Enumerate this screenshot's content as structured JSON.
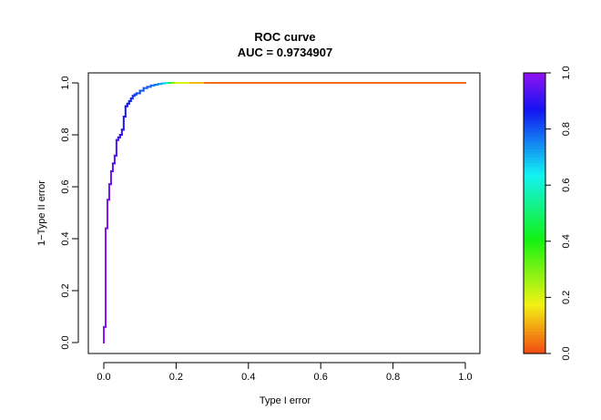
{
  "chart_data": {
    "type": "line",
    "title": "ROC curve",
    "subtitle": "AUC = 0.9734907",
    "xlabel": "Type I error",
    "ylabel": "1−Type II error",
    "xlim": [
      0,
      1
    ],
    "ylim": [
      0,
      1
    ],
    "x_ticks": [
      "0.0",
      "0.2",
      "0.4",
      "0.6",
      "0.8",
      "1.0"
    ],
    "y_ticks": [
      "0.0",
      "0.2",
      "0.4",
      "0.6",
      "0.8",
      "1.0"
    ],
    "grid": false,
    "curve_color_scale": "threshold (rainbow: red at 0, purple at 1)",
    "series": [
      {
        "x": [
          0.0,
          0.0,
          0.005,
          0.005,
          0.01,
          0.01,
          0.015,
          0.015,
          0.02,
          0.02,
          0.025,
          0.025,
          0.03,
          0.03,
          0.035,
          0.035,
          0.04,
          0.04,
          0.045,
          0.045,
          0.05,
          0.05,
          0.055,
          0.055,
          0.06,
          0.06,
          0.065,
          0.065,
          0.07,
          0.07,
          0.075,
          0.075,
          0.08,
          0.08,
          0.085,
          0.085,
          0.09,
          0.09,
          0.1,
          0.1,
          0.11,
          0.11,
          0.12,
          0.12,
          0.13,
          0.13,
          0.14,
          0.14,
          0.15,
          0.15,
          0.16,
          0.16,
          0.17,
          0.17,
          0.18,
          0.19,
          0.2,
          0.24,
          0.28,
          1.0
        ],
        "y": [
          0.0,
          0.06,
          0.06,
          0.44,
          0.44,
          0.55,
          0.55,
          0.61,
          0.61,
          0.66,
          0.66,
          0.69,
          0.69,
          0.72,
          0.72,
          0.78,
          0.78,
          0.79,
          0.79,
          0.8,
          0.8,
          0.82,
          0.82,
          0.87,
          0.87,
          0.91,
          0.91,
          0.92,
          0.92,
          0.93,
          0.93,
          0.94,
          0.94,
          0.95,
          0.95,
          0.955,
          0.955,
          0.96,
          0.96,
          0.97,
          0.97,
          0.98,
          0.98,
          0.985,
          0.985,
          0.99,
          0.99,
          0.993,
          0.993,
          0.996,
          0.996,
          0.998,
          0.998,
          1.0,
          1.0,
          1.0,
          1.0,
          1.0,
          1.0,
          1.0
        ],
        "threshold": [
          1.0,
          1.0,
          0.99,
          0.99,
          0.98,
          0.98,
          0.97,
          0.97,
          0.96,
          0.96,
          0.95,
          0.95,
          0.94,
          0.94,
          0.93,
          0.93,
          0.92,
          0.92,
          0.91,
          0.91,
          0.9,
          0.9,
          0.89,
          0.89,
          0.88,
          0.88,
          0.87,
          0.87,
          0.86,
          0.86,
          0.85,
          0.85,
          0.84,
          0.84,
          0.83,
          0.83,
          0.82,
          0.82,
          0.81,
          0.81,
          0.8,
          0.8,
          0.79,
          0.79,
          0.78,
          0.78,
          0.77,
          0.77,
          0.75,
          0.75,
          0.72,
          0.72,
          0.68,
          0.68,
          0.55,
          0.35,
          0.25,
          0.15,
          0.08,
          0.0
        ]
      }
    ],
    "colorbar": {
      "range": [
        0,
        1
      ],
      "ticks": [
        "0.0",
        "0.2",
        "0.4",
        "0.6",
        "0.8",
        "1.0"
      ]
    }
  }
}
